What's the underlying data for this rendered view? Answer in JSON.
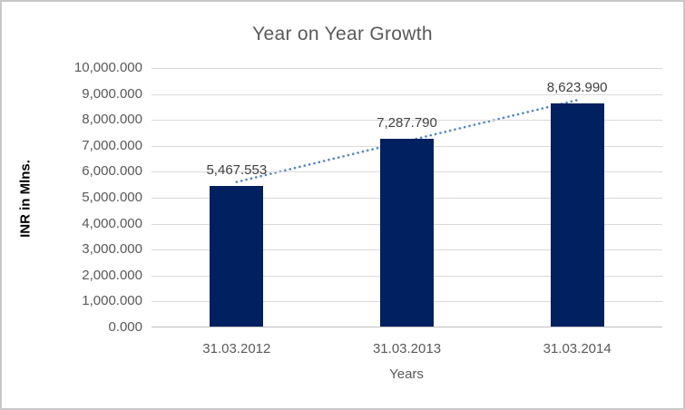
{
  "chart": {
    "colors": {
      "bar": "#002060",
      "trendline": "#4f86c8",
      "title_text": "#595959",
      "tick_text": "#595959",
      "data_label_text": "#404040",
      "gridline": "#d9d9d9",
      "axis_line": "#bfbfbf",
      "frame_border": "#c8c8c8",
      "background": "#ffffff"
    }
  },
  "chart_data": {
    "type": "bar",
    "title": "Year on Year Growth",
    "xlabel": "Years",
    "ylabel": "INR in Mlns.",
    "categories": [
      "31.03.2012",
      "31.03.2013",
      "31.03.2014"
    ],
    "values": [
      5467.553,
      7287.79,
      8623.99
    ],
    "data_labels": [
      "5,467.553",
      "7,287.790",
      "8,623.990"
    ],
    "ylim": [
      0,
      10000
    ],
    "ytick_step": 1000,
    "ytick_labels": [
      "0.000",
      "1,000.000",
      "2,000.000",
      "3,000.000",
      "4,000.000",
      "5,000.000",
      "6,000.000",
      "7,000.000",
      "8,000.000",
      "9,000.000",
      "10,000.000"
    ],
    "grid": true,
    "legend": "none",
    "trendline": {
      "type": "linear",
      "style": "dotted",
      "color": "#4f86c8"
    }
  }
}
